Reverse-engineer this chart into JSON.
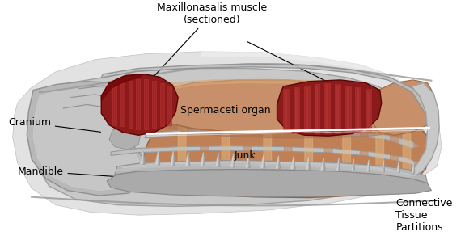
{
  "labels": {
    "maxillonasalis": "Maxillonasalis muscle\n(sectioned)",
    "spermaceti": "Spermaceti organ",
    "junk": "Junk",
    "cranium": "Cranium",
    "mandible": "Mandible",
    "connective": "Connective\nTissue\nPartitions"
  },
  "colors": {
    "bg_outer": "#d8d8d8",
    "bg_inner": "#c4c4c4",
    "cranium_gray": "#b0b0b0",
    "cranium_light": "#d0d0d0",
    "muscle_dark": "#8B1A1A",
    "muscle_mid": "#B03030",
    "muscle_light": "#C04040",
    "spermaceti_base": "#C8906A",
    "spermaceti_hi": "#D8A87A",
    "junk_base": "#C08055",
    "junk_light": "#D4A070",
    "junk_stripe_light": "#E0B888",
    "junk_stripe_dark": "#B07048",
    "mandible_gray": "#aaaaaa",
    "teeth_gray": "#b8b8b8",
    "teeth_shadow": "#888888",
    "white_line": "#ffffff",
    "outline": "#888888"
  },
  "font_size": 9
}
